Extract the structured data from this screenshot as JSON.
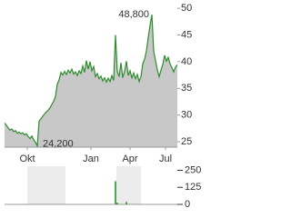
{
  "chart_data": {
    "type": "line",
    "x": [
      0,
      1,
      2,
      3,
      4,
      5,
      6,
      7,
      8,
      9,
      10,
      11,
      12,
      13,
      14,
      15,
      16,
      17,
      18,
      19,
      20,
      21,
      22,
      23,
      24,
      25,
      26,
      27,
      28,
      29,
      30,
      31,
      32,
      33,
      34,
      35,
      36,
      37,
      38,
      39,
      40,
      41,
      42,
      43,
      44,
      45,
      46,
      47,
      48,
      49,
      50,
      51,
      52,
      53,
      54,
      55,
      56,
      57,
      58,
      59,
      60,
      61,
      62,
      63,
      64,
      65,
      66,
      67,
      68,
      69,
      70,
      71,
      72,
      73,
      74,
      75,
      76,
      77,
      78,
      79,
      80,
      81,
      82,
      83,
      84,
      85,
      86,
      87,
      88,
      89,
      90,
      91,
      92,
      93,
      94,
      95
    ],
    "values": [
      28.5,
      28.1,
      27.6,
      27.2,
      27.4,
      26.9,
      27.1,
      26.6,
      26.8,
      26.5,
      26.7,
      26.3,
      26.5,
      26.0,
      25.6,
      26.1,
      25.4,
      24.9,
      24.2,
      28.9,
      29.3,
      29.8,
      30.2,
      30.6,
      30.9,
      31.4,
      32.0,
      32.6,
      33.5,
      35.8,
      36.6,
      38.0,
      37.5,
      38.2,
      37.6,
      38.4,
      37.9,
      38.6,
      37.7,
      38.1,
      37.4,
      38.3,
      37.8,
      39.2,
      38.0,
      40.2,
      38.6,
      40.0,
      38.3,
      39.1,
      37.2,
      37.8,
      36.8,
      37.3,
      36.4,
      37.0,
      36.2,
      36.9,
      36.3,
      37.4,
      36.5,
      45.0,
      38.2,
      37.2,
      39.8,
      37.0,
      38.2,
      40.1,
      37.4,
      38.3,
      37.0,
      37.9,
      36.8,
      37.6,
      36.3,
      37.2,
      39.6,
      40.5,
      42.0,
      44.5,
      46.8,
      48.8,
      42.0,
      40.2,
      38.5,
      37.2,
      38.4,
      39.5,
      41.2,
      40.1,
      40.8,
      39.6,
      38.9,
      38.1,
      39.0,
      39.4
    ],
    "value_labels": [
      null,
      null,
      null,
      null,
      null,
      null,
      null,
      null,
      null,
      null,
      null,
      null,
      null,
      null,
      null,
      null,
      null,
      null,
      "24,200",
      null,
      null,
      null,
      null,
      null,
      null,
      null,
      null,
      null,
      null,
      null,
      null,
      null,
      null,
      null,
      null,
      null,
      null,
      null,
      null,
      null,
      null,
      null,
      null,
      null,
      null,
      null,
      null,
      null,
      null,
      null,
      null,
      null,
      null,
      null,
      null,
      null,
      null,
      null,
      null,
      null,
      null,
      null,
      null,
      null,
      null,
      null,
      null,
      null,
      null,
      null,
      null,
      null,
      null,
      null,
      null,
      null,
      null,
      null,
      null,
      null,
      null,
      "48,800",
      null,
      null,
      null,
      null,
      null,
      null,
      null,
      null,
      null,
      null,
      null,
      null,
      null,
      null
    ],
    "color": "#2e8b2e",
    "fill": "#c8c8c8",
    "xlim": [
      0,
      95
    ],
    "xticks": [
      {
        "value": 12.5,
        "label": "Okt"
      },
      {
        "value": 47.5,
        "label": "Jan"
      },
      {
        "value": 69,
        "label": "Apr"
      },
      {
        "value": 88.5,
        "label": "Jul"
      }
    ],
    "ylim": [
      24,
      50.7
    ],
    "yticks": [
      25,
      30,
      35,
      40,
      45,
      50
    ],
    "volume": {
      "type": "bar",
      "x": [
        61,
        62,
        67
      ],
      "values": [
        170,
        12,
        18
      ],
      "color": "#2e8b2e",
      "ylim": [
        0,
        280
      ],
      "yticks": [
        0,
        125,
        250
      ]
    }
  }
}
